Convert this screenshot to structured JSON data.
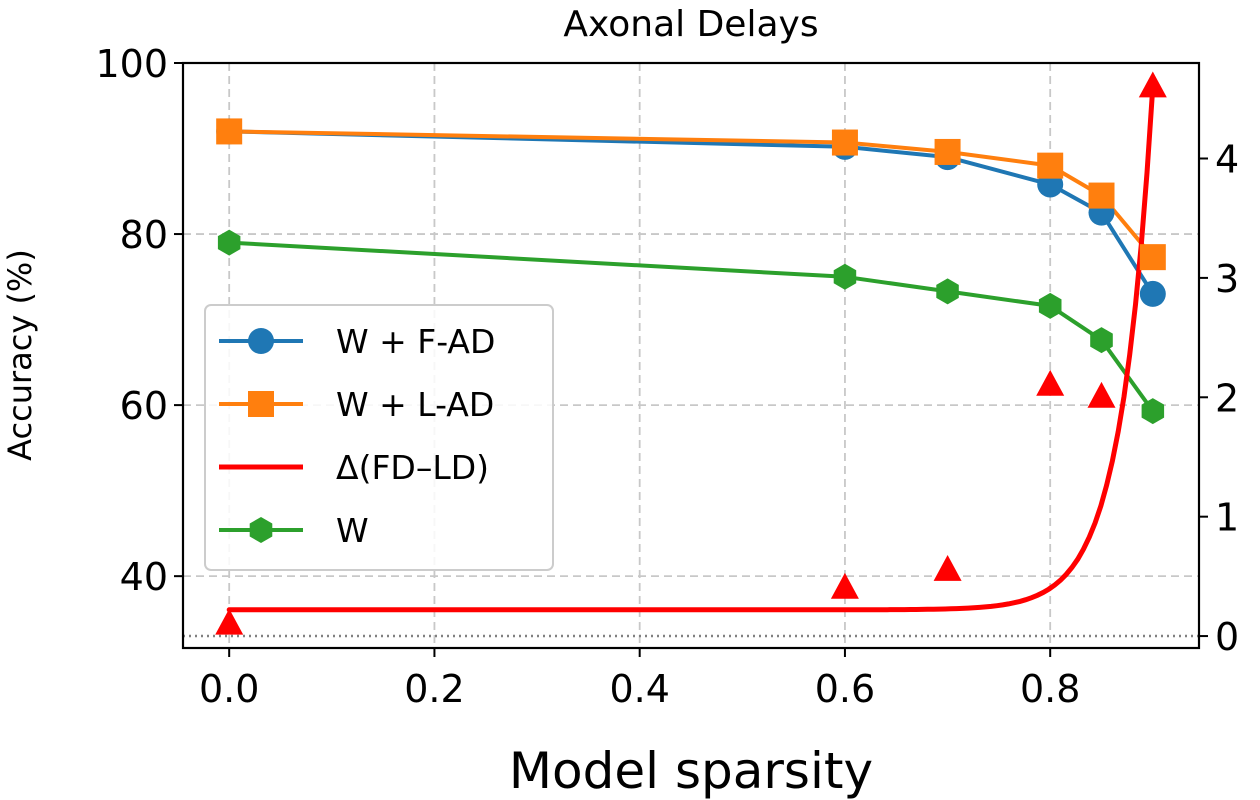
{
  "chart_data": {
    "type": "line",
    "title": "Axonal Delays",
    "xlabel": "Model sparsity",
    "ylabel": "Accuracy (%)",
    "xlim": [
      -0.045,
      0.945
    ],
    "ylim": [
      31.6,
      100
    ],
    "y2lim": [
      -0.1,
      4.8
    ],
    "xticks": [
      "0.0",
      "0.2",
      "0.4",
      "0.6",
      "0.8"
    ],
    "xtick_values": [
      0.0,
      0.2,
      0.4,
      0.6,
      0.8
    ],
    "yticks": [
      "40",
      "60",
      "80",
      "100"
    ],
    "ytick_values": [
      40,
      60,
      80,
      100
    ],
    "y2ticks": [
      "0",
      "1",
      "2",
      "3",
      "4"
    ],
    "y2tick_values": [
      0,
      1,
      2,
      3,
      4
    ],
    "grid": true,
    "legend_position": "center-left",
    "x": [
      0.0,
      0.6,
      0.7,
      0.8,
      0.85,
      0.9
    ],
    "series": [
      {
        "name": "W + F-AD",
        "axis": "left",
        "color": "#1f77b4",
        "marker": "circle",
        "values": [
          92.0,
          90.2,
          89.0,
          85.8,
          82.5,
          73.0
        ]
      },
      {
        "name": "W + L-AD",
        "axis": "left",
        "color": "#ff7f0e",
        "marker": "square",
        "values": [
          92.0,
          90.7,
          89.6,
          88.0,
          84.5,
          77.3
        ]
      },
      {
        "name": "W",
        "axis": "left",
        "color": "#2ca02c",
        "marker": "hexagon",
        "values": [
          79.0,
          75.0,
          73.3,
          71.6,
          67.6,
          59.3
        ]
      }
    ],
    "delta_series": {
      "name": "Δ(FD–LD)",
      "axis": "right",
      "color": "#ff0000",
      "marker": "triangle",
      "points": [
        0.1,
        0.4,
        0.55,
        2.1,
        2.0,
        4.6
      ],
      "fit_baseline": 0.22,
      "fit_amplitude": 4.38,
      "fit_rate": 31.9,
      "fit_end": 0.9
    },
    "reference_line": {
      "axis": "right",
      "value": 0.0,
      "style": "dotted",
      "color": "#808080"
    },
    "legend": [
      "W + F-AD",
      "W + L-AD",
      "Δ(FD–LD)",
      "W"
    ]
  }
}
